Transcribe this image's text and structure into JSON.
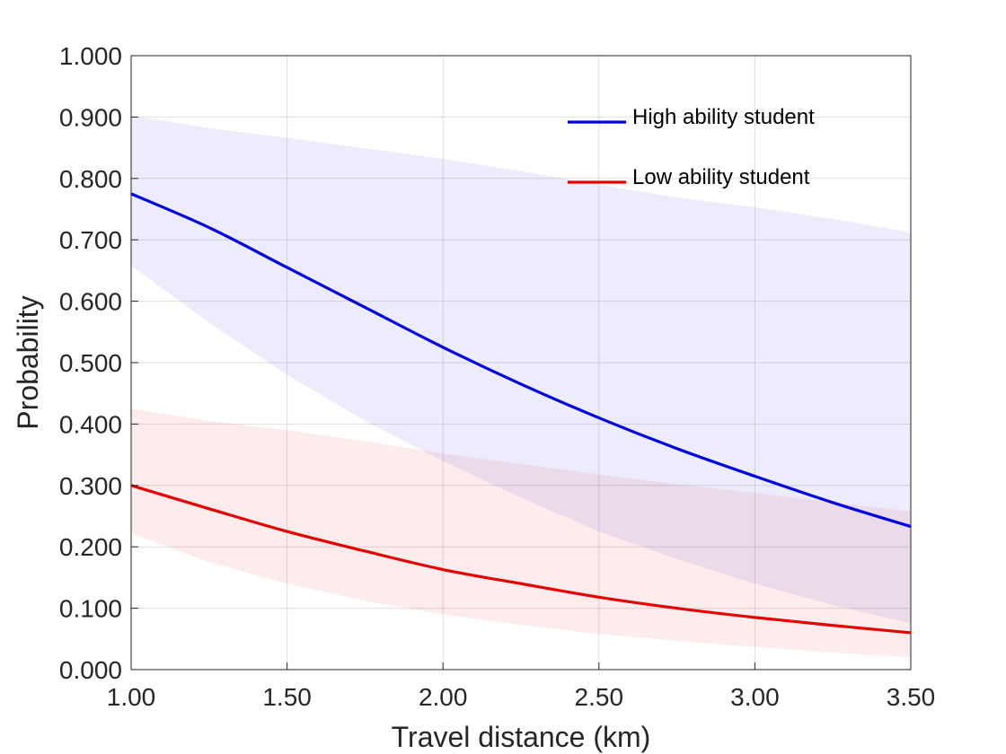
{
  "chart_data": {
    "type": "line",
    "xlabel": "Travel distance (km)",
    "ylabel": "Probability",
    "xlim": [
      1.0,
      3.5
    ],
    "ylim": [
      0.0,
      1.0
    ],
    "grid": true,
    "legend_position": "top-right",
    "x_ticks": [
      "1.00",
      "1.50",
      "2.00",
      "2.50",
      "3.00",
      "3.50"
    ],
    "y_ticks": [
      "0.000",
      "0.100",
      "0.200",
      "0.300",
      "0.400",
      "0.500",
      "0.600",
      "0.700",
      "0.800",
      "0.900",
      "1.000"
    ],
    "x": [
      1.0,
      1.25,
      1.5,
      1.75,
      2.0,
      2.25,
      2.5,
      2.75,
      3.0,
      3.25,
      3.5
    ],
    "series": [
      {
        "name": "High ability student",
        "color": "#0000e6",
        "band_color": "#ebebfb",
        "values": [
          0.775,
          0.72,
          0.655,
          0.59,
          0.525,
          0.465,
          0.41,
          0.36,
          0.315,
          0.272,
          0.233
        ],
        "lower": [
          0.658,
          0.565,
          0.48,
          0.405,
          0.34,
          0.28,
          0.225,
          0.18,
          0.14,
          0.105,
          0.075
        ],
        "upper": [
          0.902,
          0.882,
          0.866,
          0.849,
          0.832,
          0.812,
          0.79,
          0.769,
          0.753,
          0.734,
          0.712
        ]
      },
      {
        "name": "Low ability student",
        "color": "#e60000",
        "band_color": "#fcebeb",
        "values": [
          0.3,
          0.262,
          0.225,
          0.193,
          0.163,
          0.14,
          0.118,
          0.1,
          0.085,
          0.072,
          0.06
        ],
        "lower": [
          0.222,
          0.175,
          0.14,
          0.112,
          0.09,
          0.073,
          0.058,
          0.047,
          0.037,
          0.028,
          0.02
        ],
        "upper": [
          0.425,
          0.405,
          0.39,
          0.372,
          0.352,
          0.335,
          0.318,
          0.302,
          0.288,
          0.272,
          0.258
        ]
      }
    ]
  }
}
